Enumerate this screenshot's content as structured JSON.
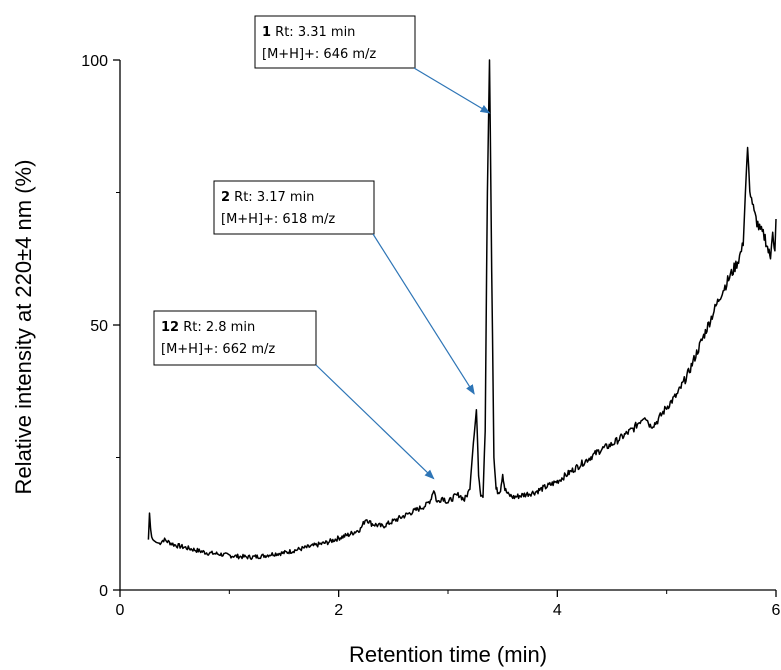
{
  "chart_data": {
    "type": "line",
    "title": "",
    "xlabel": "Retention time (min)",
    "ylabel": "Relative intensity at 220±4 nm (%)",
    "xlim": [
      0,
      6
    ],
    "ylim": [
      0,
      100
    ],
    "x_ticks": [
      "0",
      "2",
      "4",
      "6"
    ],
    "y_ticks": [
      "0",
      "50",
      "100"
    ],
    "grid": false,
    "series": [
      {
        "x": [
          0.26,
          0.27,
          0.28,
          0.29,
          0.3,
          0.33,
          0.36,
          0.4,
          0.45,
          0.5,
          0.6,
          0.7,
          0.8,
          0.9,
          1.0,
          1.1,
          1.2,
          1.3,
          1.4,
          1.5,
          1.6,
          1.7,
          1.8,
          1.9,
          2.0,
          2.1,
          2.2,
          2.25,
          2.3,
          2.4,
          2.5,
          2.6,
          2.7,
          2.8,
          2.84,
          2.87,
          2.9,
          2.95,
          3.0,
          3.05,
          3.1,
          3.15,
          3.2,
          3.24,
          3.26,
          3.28,
          3.3,
          3.32,
          3.34,
          3.36,
          3.38,
          3.4,
          3.42,
          3.44,
          3.46,
          3.48,
          3.5,
          3.52,
          3.55,
          3.6,
          3.7,
          3.8,
          3.9,
          4.0,
          4.1,
          4.2,
          4.3,
          4.4,
          4.5,
          4.6,
          4.7,
          4.8,
          4.85,
          4.9,
          5.0,
          5.1,
          5.2,
          5.3,
          5.4,
          5.5,
          5.6,
          5.65,
          5.7,
          5.72,
          5.74,
          5.76,
          5.8,
          5.85,
          5.9,
          5.93,
          5.95,
          5.97,
          5.99,
          6.0
        ],
        "y": [
          9.5,
          14.5,
          11.5,
          10.0,
          9.5,
          9.0,
          8.8,
          9.5,
          9.0,
          8.5,
          8.0,
          7.5,
          7.0,
          6.8,
          6.5,
          6.3,
          6.2,
          6.4,
          6.8,
          7.0,
          7.5,
          8.0,
          8.5,
          9.0,
          9.8,
          10.5,
          11.5,
          13.5,
          12.5,
          12.0,
          13.0,
          14.0,
          15.0,
          16.0,
          17.0,
          19.0,
          16.5,
          17.5,
          16.5,
          17.5,
          18.0,
          17.0,
          19.0,
          30.0,
          34.0,
          22.0,
          18.0,
          17.5,
          30.0,
          75.0,
          100.0,
          60.0,
          25.0,
          19.0,
          18.5,
          19.0,
          22.0,
          19.0,
          18.0,
          17.5,
          18.0,
          18.5,
          19.5,
          20.5,
          22.0,
          23.5,
          25.0,
          26.5,
          27.5,
          29.0,
          30.5,
          33.0,
          31.0,
          31.5,
          34.5,
          37.0,
          41.0,
          46.0,
          51.0,
          56.0,
          60.0,
          62.0,
          65.0,
          75.0,
          83.5,
          76.0,
          71.0,
          68.0,
          66.5,
          64.0,
          62.5,
          68.0,
          64.0,
          70.0
        ]
      }
    ],
    "annotations": [
      {
        "num": "1",
        "rt": " Rt: 3.31 min",
        "mz": "[M+H]+:  646 m/z",
        "x": 3.38,
        "y": 90
      },
      {
        "num": "2",
        "rt": " Rt: 3.17 min",
        "mz": "[M+H]+:  618 m/z",
        "x": 3.24,
        "y": 37
      },
      {
        "num": "12",
        "rt": " Rt: 2.8 min",
        "mz": "[M+H]+:  662 m/z",
        "x": 2.87,
        "y": 21
      }
    ],
    "colors": {
      "line": "#000000",
      "arrow": "#2e75b6",
      "box_border": "#000000"
    }
  }
}
